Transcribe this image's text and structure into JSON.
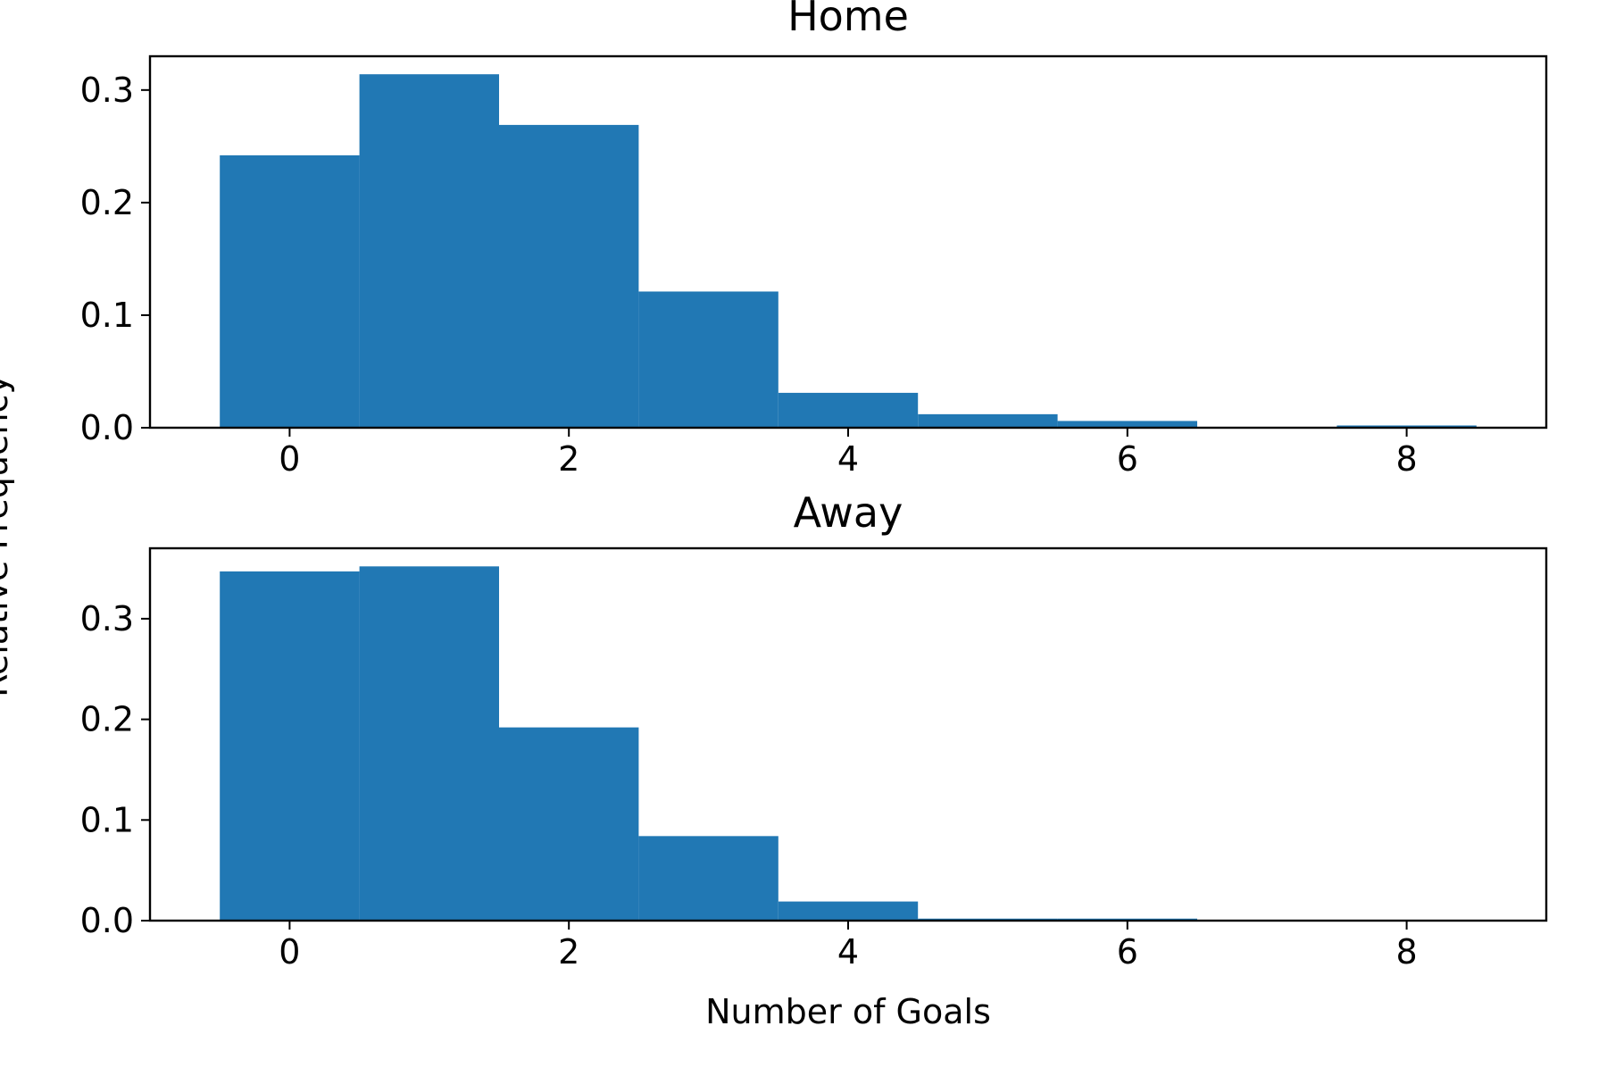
{
  "chart_data": [
    {
      "type": "bar",
      "title": "Home",
      "xlabel": "",
      "ylabel": "Relative Frequency",
      "x": [
        0,
        1,
        2,
        3,
        4,
        5,
        6,
        7,
        8
      ],
      "values": [
        0.242,
        0.314,
        0.269,
        0.121,
        0.031,
        0.012,
        0.006,
        0.0,
        0.002
      ],
      "bin_width": 1,
      "xlim": [
        -1,
        9
      ],
      "ylim": [
        0,
        0.33
      ],
      "xticks": [
        0,
        2,
        4,
        6,
        8
      ],
      "yticks": [
        0.0,
        0.1,
        0.2,
        0.3
      ],
      "xtick_labels": [
        "0",
        "2",
        "4",
        "6",
        "8"
      ],
      "ytick_labels": [
        "0.0",
        "0.1",
        "0.2",
        "0.3"
      ],
      "grid": false,
      "color": "#2178b4"
    },
    {
      "type": "bar",
      "title": "Away",
      "xlabel": "Number of Goals",
      "ylabel": "Relative Frequency",
      "x": [
        0,
        1,
        2,
        3,
        4,
        5,
        6,
        7,
        8
      ],
      "values": [
        0.347,
        0.352,
        0.192,
        0.084,
        0.019,
        0.002,
        0.002,
        0.0,
        0.0
      ],
      "bin_width": 1,
      "xlim": [
        -1,
        9
      ],
      "ylim": [
        0,
        0.37
      ],
      "xticks": [
        0,
        2,
        4,
        6,
        8
      ],
      "yticks": [
        0.0,
        0.1,
        0.2,
        0.3
      ],
      "xtick_labels": [
        "0",
        "2",
        "4",
        "6",
        "8"
      ],
      "ytick_labels": [
        "0.0",
        "0.1",
        "0.2",
        "0.3"
      ],
      "grid": false,
      "color": "#2178b4"
    }
  ],
  "shared": {
    "ylabel": "Relative Frequency"
  }
}
